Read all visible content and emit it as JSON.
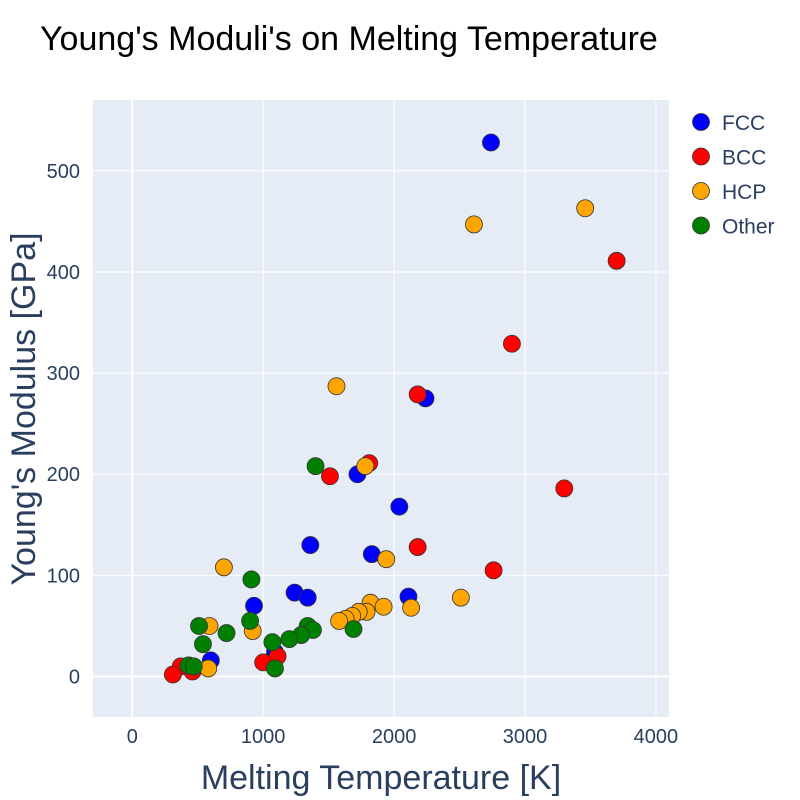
{
  "chart_data": {
    "type": "scatter",
    "title": "Young's Moduli's on Melting Temperature",
    "xlabel": "Melting Temperature [K]",
    "ylabel": "Young's Modulus [GPa]",
    "xlim": [
      -300,
      4100
    ],
    "ylim": [
      -40,
      570
    ],
    "xticks": [
      0,
      1000,
      2000,
      3000,
      4000
    ],
    "xtick_labels": [
      "0",
      "1000",
      "2000",
      "3000",
      "4000"
    ],
    "yticks": [
      0,
      100,
      200,
      300,
      400,
      500
    ],
    "ytick_labels": [
      "0",
      "100",
      "200",
      "300",
      "400",
      "500"
    ],
    "grid": true,
    "legend_position": "right",
    "plot_background": "#e5ecf6",
    "series": [
      {
        "name": "FCC",
        "color": "#0000ff",
        "points": [
          [
            2740,
            528
          ],
          [
            2240,
            275
          ],
          [
            1720,
            200
          ],
          [
            2040,
            168
          ],
          [
            1360,
            130
          ],
          [
            1830,
            121
          ],
          [
            1240,
            83
          ],
          [
            1340,
            78
          ],
          [
            2110,
            79
          ],
          [
            930,
            70
          ],
          [
            1090,
            24
          ],
          [
            600,
            16
          ]
        ]
      },
      {
        "name": "BCC",
        "color": "#ff0000",
        "points": [
          [
            3700,
            411
          ],
          [
            2900,
            329
          ],
          [
            2180,
            279
          ],
          [
            1810,
            211
          ],
          [
            1510,
            198
          ],
          [
            3300,
            186
          ],
          [
            2180,
            128
          ],
          [
            2760,
            105
          ],
          [
            1000,
            14
          ],
          [
            1110,
            20
          ],
          [
            370,
            10
          ],
          [
            460,
            5
          ],
          [
            310,
            2
          ]
        ]
      },
      {
        "name": "HCP",
        "color": "#ffa500",
        "points": [
          [
            3460,
            463
          ],
          [
            2610,
            447
          ],
          [
            1560,
            287
          ],
          [
            1780,
            208
          ],
          [
            1940,
            116
          ],
          [
            700,
            108
          ],
          [
            2510,
            78
          ],
          [
            1820,
            73
          ],
          [
            1920,
            69
          ],
          [
            2130,
            68
          ],
          [
            1790,
            64
          ],
          [
            1730,
            64
          ],
          [
            1680,
            60
          ],
          [
            1630,
            57
          ],
          [
            1580,
            55
          ],
          [
            590,
            50
          ],
          [
            920,
            45
          ],
          [
            580,
            8
          ]
        ]
      },
      {
        "name": "Other",
        "color": "#008000",
        "points": [
          [
            1400,
            208
          ],
          [
            910,
            96
          ],
          [
            900,
            55
          ],
          [
            510,
            50
          ],
          [
            1340,
            50
          ],
          [
            1380,
            46
          ],
          [
            1690,
            47
          ],
          [
            720,
            43
          ],
          [
            1290,
            41
          ],
          [
            1200,
            37
          ],
          [
            1070,
            34
          ],
          [
            540,
            32
          ],
          [
            430,
            11
          ],
          [
            470,
            10
          ],
          [
            1090,
            8
          ]
        ]
      }
    ]
  }
}
